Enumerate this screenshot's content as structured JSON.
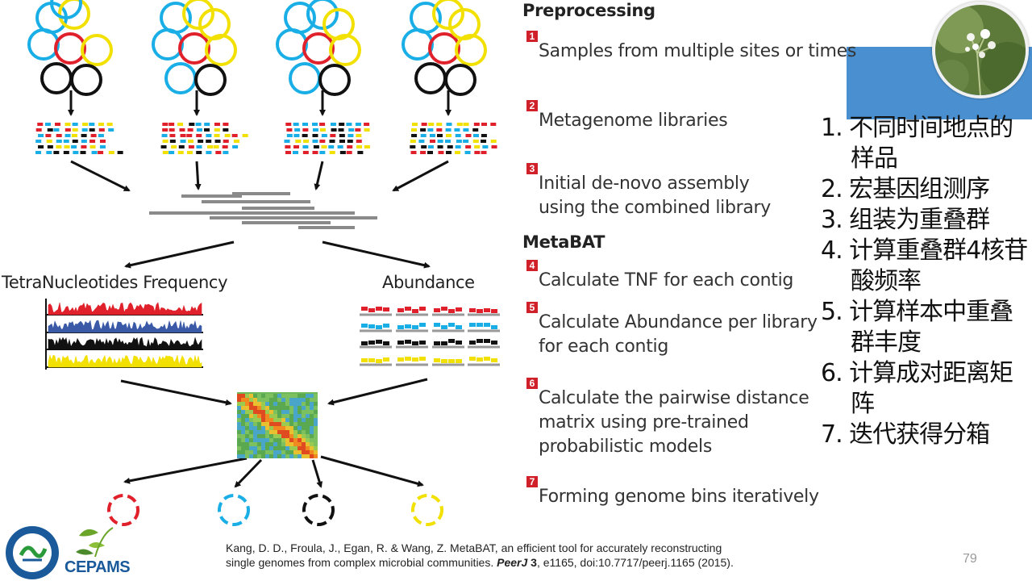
{
  "page_number": "79",
  "colors": {
    "red": "#e0202a",
    "blue": "#1aaee6",
    "yellow": "#f2e000",
    "black": "#111111",
    "step_badge": "#d0202a",
    "banner": "#4a90d0"
  },
  "figure": {
    "label_tnf": "TetraNucleotides Frequency",
    "label_abundance": "Abundance"
  },
  "headings": {
    "preprocessing": "Preprocessing",
    "metabat": "MetaBAT"
  },
  "steps": [
    {
      "num": "1",
      "text": "Samples from multiple sites or times"
    },
    {
      "num": "2",
      "text": "Metagenome libraries"
    },
    {
      "num": "3",
      "text": "Initial de-novo assembly\nusing the combined library"
    },
    {
      "num": "4",
      "text": "Calculate TNF for each contig"
    },
    {
      "num": "5",
      "text": "Calculate Abundance per library\nfor each contig"
    },
    {
      "num": "6",
      "text": "Calculate the pairwise distance\nmatrix using pre-trained\nprobabilistic models"
    },
    {
      "num": "7",
      "text": "Forming genome bins iteratively"
    }
  ],
  "cn_steps": [
    "1. 不同时间地点的样品",
    "2. 宏基因组测序",
    "3. 组装为重叠群",
    "4. 计算重叠群4核苷酸频率",
    "5. 计算样本中重叠群丰度",
    "6. 计算成对距离矩阵",
    "7. 迭代获得分箱"
  ],
  "citation": {
    "line1": "Kang, D. D., Froula, J., Egan, R. & Wang, Z. MetaBAT, an efficient tool for accurately  reconstructing",
    "line2_pre": "single genomes from complex microbial communities. ",
    "journal": "PeerJ",
    "volume": "3",
    "line2_post": ", e1165, doi:10.7717/peerj.1165 (2015)."
  },
  "logos": {
    "cepams": "CEPAMS",
    "left_logo_icon": "institution-seal-icon"
  }
}
